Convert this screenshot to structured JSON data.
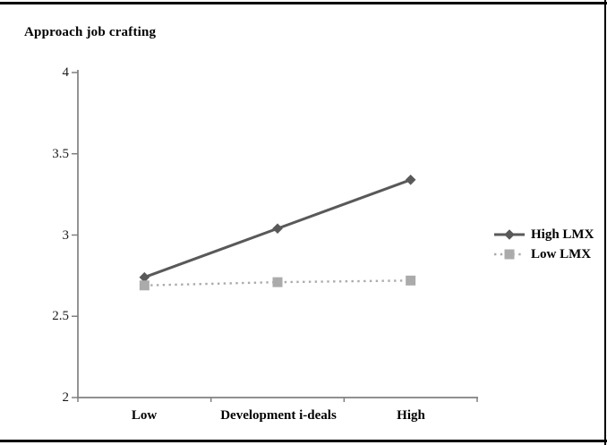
{
  "figure": {
    "title": "Approach job crafting"
  },
  "colors": {
    "axis": "#808080",
    "rule": "#000000",
    "text": "#000000",
    "high_lmx": "#595959",
    "low_lmx": "#ababab"
  },
  "chart_data": {
    "type": "line",
    "title": "Approach job crafting",
    "ylabel": "Approach job crafting",
    "xlabel": "Development i-deals",
    "categories": [
      "Low",
      "Development i-deals",
      "High"
    ],
    "series": [
      {
        "name": "High LMX",
        "values": [
          2.74,
          3.04,
          3.34
        ],
        "marker": "diamond",
        "line_style": "solid",
        "color": "#595959"
      },
      {
        "name": "Low LMX",
        "values": [
          2.69,
          2.71,
          2.72
        ],
        "marker": "square",
        "line_style": "dotted",
        "color": "#ababab"
      }
    ],
    "ylim": [
      2,
      4
    ],
    "yticks": [
      4,
      3.5,
      3,
      2.5,
      2
    ],
    "grid": false,
    "legend_position": "right"
  }
}
